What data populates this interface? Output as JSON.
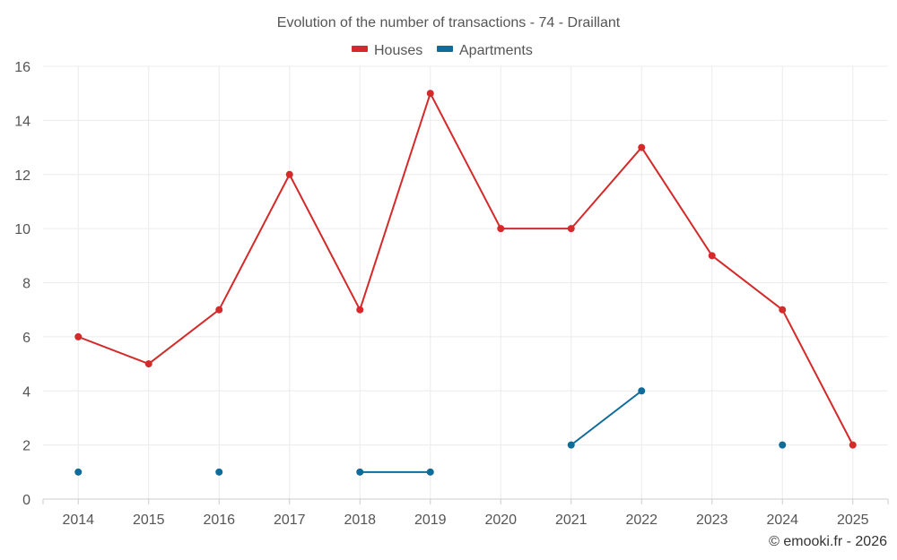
{
  "chart_data": {
    "type": "line",
    "title": "Evolution of the number of transactions - 74 - Draillant",
    "categories": [
      "2014",
      "2015",
      "2016",
      "2017",
      "2018",
      "2019",
      "2020",
      "2021",
      "2022",
      "2023",
      "2024",
      "2025"
    ],
    "ylim": [
      0,
      16
    ],
    "yticks": [
      0,
      2,
      4,
      6,
      8,
      10,
      12,
      14,
      16
    ],
    "grid": true,
    "legend_position": "top-center",
    "series": [
      {
        "name": "Houses",
        "color": "#d42a2a",
        "values": [
          6,
          5,
          7,
          12,
          7,
          15,
          10,
          10,
          13,
          9,
          7,
          2
        ]
      },
      {
        "name": "Apartments",
        "color": "#0f6b99",
        "values": [
          1,
          null,
          1,
          null,
          1,
          1,
          null,
          2,
          4,
          null,
          2,
          null
        ]
      }
    ],
    "credit": "© emooki.fr - 2026"
  }
}
